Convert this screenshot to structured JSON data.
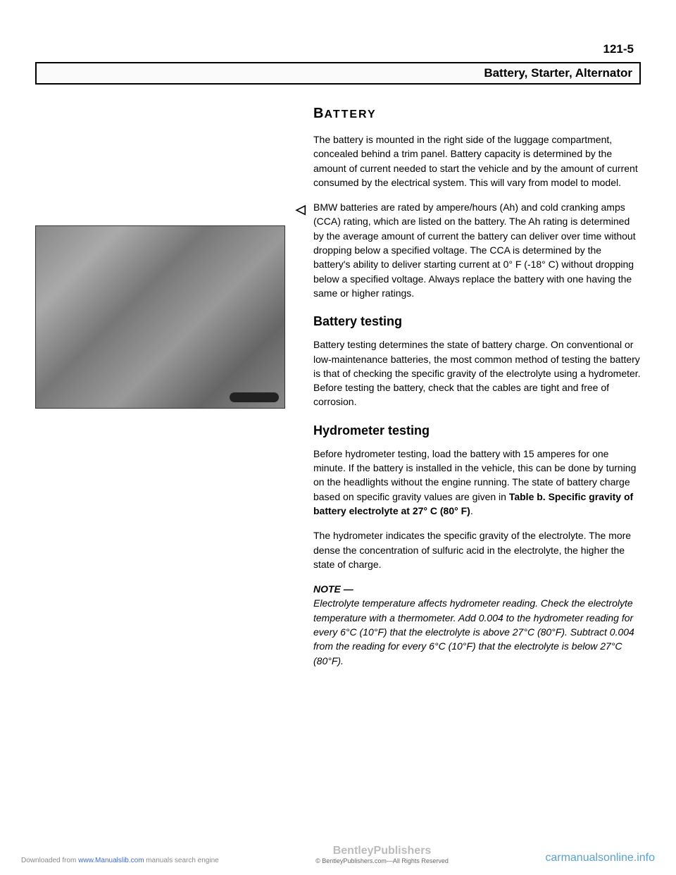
{
  "page_number": "121-5",
  "title": "Battery, Starter, Alternator",
  "heading": "BATTERY",
  "intro": "The battery is mounted in the right side of the luggage compartment, concealed behind a trim panel. Battery capacity is determined by the amount of current needed to start the vehicle and by the amount of current consumed by the electrical system. This will vary from model to model.",
  "arrow_para": "BMW batteries are rated by ampere/hours (Ah) and cold cranking amps (CCA) rating, which are listed on the battery. The Ah rating is determined by the average amount of current the battery can deliver over time without dropping below a specified voltage. The CCA is determined by the battery's ability to deliver starting current at 0° F (-18° C) without dropping below a specified voltage. Always replace the battery with one having the same or higher ratings.",
  "sub1": "Battery testing",
  "sub1_para": "Battery testing determines the state of battery charge. On conventional or low-maintenance batteries, the most common method of testing the battery is that of checking the specific gravity of the electrolyte using a hydrometer. Before testing the battery, check that the cables are tight and free of corrosion.",
  "sub2": "Hydrometer testing",
  "sub2_para1a": "Before hydrometer testing, load the battery with 15 amperes for one minute. If the battery is installed in the vehicle, this can be done by turning on the headlights without the engine running. The state of battery charge based on specific gravity values are given in ",
  "sub2_para1b": "Table b. Specific gravity of battery electrolyte at 27° C (80° F)",
  "sub2_para2": "The hydrometer indicates the specific gravity of the electrolyte. The more dense the concentration of sulfuric acid in the electrolyte, the higher the state of charge.",
  "note_label": "NOTE —",
  "note_text": "Electrolyte temperature affects hydrometer reading. Check the electrolyte temperature with a thermometer. Add 0.004 to the hydrometer reading for every 6°C (10°F) that the electrolyte is above 27°C (80°F). Subtract 0.004 from the reading for every 6°C (10°F) that the electrolyte is below 27°C (80°F).",
  "footer_left_a": "Downloaded from ",
  "footer_left_b": "www.Manualslib.com",
  "footer_left_c": " manuals search engine",
  "footer_center": "BentleyPublishers",
  "footer_center_sub": "© BentleyPublishers.com—All Rights Reserved",
  "footer_right": "carmanualsonline.info"
}
